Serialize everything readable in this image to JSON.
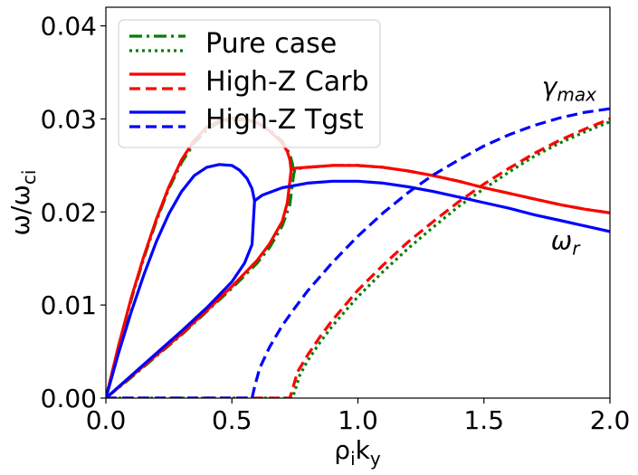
{
  "chart_data": {
    "type": "line",
    "xlabel_main": "ρ",
    "xlabel_sub1": "i",
    "xlabel_mid": "k",
    "xlabel_sub2": "y",
    "ylabel_main": "ω/ω",
    "ylabel_sub": "ci",
    "xlim": [
      0.0,
      2.0
    ],
    "ylim": [
      0.0,
      0.042
    ],
    "x_ticks": [
      0.0,
      0.5,
      1.0,
      1.5,
      2.0
    ],
    "x_tick_labels": [
      "0.0",
      "0.5",
      "1.0",
      "1.5",
      "2.0"
    ],
    "y_ticks": [
      0.0,
      0.01,
      0.02,
      0.03,
      0.04
    ],
    "y_tick_labels": [
      "0.00",
      "0.01",
      "0.02",
      "0.03",
      "0.04"
    ],
    "annotations": {
      "gamma": {
        "main": "γ",
        "sub": "max",
        "x": 1.73,
        "y": 0.0325
      },
      "omega": {
        "main": "ω",
        "sub": "r",
        "x": 1.73,
        "y": 0.016
      }
    },
    "legend": [
      {
        "label": "Pure case",
        "color": "#008000",
        "style1": "dashdot",
        "style2": "dotted"
      },
      {
        "label": "High-Z Carb",
        "color": "#ff0000",
        "style1": "solid",
        "style2": "dashed"
      },
      {
        "label": "High-Z Tgst",
        "color": "#0000ff",
        "style1": "solid",
        "style2": "dashed"
      }
    ],
    "series": [
      {
        "name": "Pure case omega_r",
        "color": "#008000",
        "dash": "dashdot",
        "x": [
          0.0,
          0.05,
          0.1,
          0.15,
          0.2,
          0.25,
          0.3,
          0.35,
          0.4,
          0.45,
          0.5,
          0.55,
          0.6,
          0.65,
          0.7,
          0.73,
          0.74,
          0.745
        ],
        "y": [
          0.0,
          0.0055,
          0.0105,
          0.015,
          0.019,
          0.0225,
          0.0253,
          0.0274,
          0.0288,
          0.0296,
          0.0299,
          0.0299,
          0.0296,
          0.0288,
          0.0276,
          0.0262,
          0.0252,
          0.024
        ]
      },
      {
        "name": "Pure case omega_r lower",
        "color": "#008000",
        "dash": "dashdot",
        "x": [
          0.0,
          0.1,
          0.2,
          0.3,
          0.4,
          0.5,
          0.6,
          0.65,
          0.7,
          0.73,
          0.745,
          0.75,
          0.8,
          0.9,
          1.0,
          1.1,
          1.2,
          1.3,
          1.4,
          1.5,
          1.6,
          1.7,
          1.8,
          1.9,
          2.0
        ],
        "y": [
          0.0,
          0.0022,
          0.0045,
          0.0068,
          0.0093,
          0.0118,
          0.0145,
          0.0162,
          0.0185,
          0.0208,
          0.024,
          0.0246,
          0.0248,
          0.025,
          0.025,
          0.0248,
          0.0244,
          0.0239,
          0.0233,
          0.0226,
          0.022,
          0.0214,
          0.0208,
          0.0203,
          0.0199
        ]
      },
      {
        "name": "Pure case gamma_max",
        "color": "#008000",
        "dash": "dotted",
        "x": [
          0.0,
          0.74,
          0.75,
          0.77,
          0.8,
          0.85,
          0.9,
          1.0,
          1.1,
          1.2,
          1.3,
          1.4,
          1.5,
          1.6,
          1.7,
          1.8,
          1.9,
          2.0
        ],
        "y": [
          0.0,
          0.0,
          0.0008,
          0.0025,
          0.004,
          0.006,
          0.0078,
          0.0109,
          0.0136,
          0.0161,
          0.0184,
          0.0206,
          0.0225,
          0.0243,
          0.026,
          0.0274,
          0.0286,
          0.0297
        ]
      },
      {
        "name": "High-Z Carb omega_r",
        "color": "#ff0000",
        "dash": "solid",
        "x": [
          0.0,
          0.05,
          0.1,
          0.15,
          0.2,
          0.25,
          0.3,
          0.35,
          0.4,
          0.45,
          0.5,
          0.55,
          0.6,
          0.65,
          0.7,
          0.72,
          0.73,
          0.735
        ],
        "y": [
          0.0,
          0.0056,
          0.0107,
          0.0152,
          0.0192,
          0.0227,
          0.0256,
          0.0277,
          0.0291,
          0.0298,
          0.0301,
          0.03,
          0.0296,
          0.0287,
          0.0274,
          0.0265,
          0.0256,
          0.0245
        ]
      },
      {
        "name": "High-Z Carb omega_r lower",
        "color": "#ff0000",
        "dash": "solid",
        "x": [
          0.0,
          0.1,
          0.2,
          0.3,
          0.4,
          0.5,
          0.6,
          0.65,
          0.7,
          0.72,
          0.735,
          0.75,
          0.8,
          0.9,
          1.0,
          1.1,
          1.2,
          1.3,
          1.4,
          1.5,
          1.6,
          1.7,
          1.8,
          1.9,
          2.0
        ],
        "y": [
          0.0,
          0.0023,
          0.0046,
          0.0069,
          0.0094,
          0.012,
          0.0148,
          0.0166,
          0.019,
          0.021,
          0.0245,
          0.0247,
          0.0248,
          0.025,
          0.025,
          0.0248,
          0.0244,
          0.0239,
          0.0233,
          0.0226,
          0.022,
          0.0214,
          0.0208,
          0.0203,
          0.0199
        ]
      },
      {
        "name": "High-Z Carb gamma_max",
        "color": "#ff0000",
        "dash": "dashed",
        "x": [
          0.0,
          0.73,
          0.74,
          0.76,
          0.8,
          0.85,
          0.9,
          1.0,
          1.1,
          1.2,
          1.3,
          1.4,
          1.5,
          1.6,
          1.7,
          1.8,
          1.9,
          2.0
        ],
        "y": [
          0.0,
          0.0,
          0.0009,
          0.0028,
          0.0046,
          0.0066,
          0.0084,
          0.0116,
          0.0143,
          0.0168,
          0.019,
          0.0211,
          0.023,
          0.0247,
          0.0263,
          0.0277,
          0.0289,
          0.03
        ]
      },
      {
        "name": "High-Z Tgst omega_r",
        "color": "#0000ff",
        "dash": "solid",
        "x": [
          0.0,
          0.05,
          0.1,
          0.15,
          0.2,
          0.25,
          0.3,
          0.35,
          0.4,
          0.45,
          0.5,
          0.53,
          0.56,
          0.58,
          0.59
        ],
        "y": [
          0.0,
          0.0048,
          0.0092,
          0.0132,
          0.0168,
          0.0198,
          0.0222,
          0.0239,
          0.0248,
          0.0251,
          0.025,
          0.0245,
          0.0236,
          0.0225,
          0.0212
        ]
      },
      {
        "name": "High-Z Tgst omega_r lower",
        "color": "#0000ff",
        "dash": "solid",
        "x": [
          0.0,
          0.1,
          0.2,
          0.3,
          0.4,
          0.5,
          0.55,
          0.58,
          0.59,
          0.62,
          0.7,
          0.8,
          0.9,
          1.0,
          1.1,
          1.2,
          1.3,
          1.4,
          1.5,
          1.6,
          1.7,
          1.8,
          1.9,
          2.0
        ],
        "y": [
          0.0,
          0.0024,
          0.0048,
          0.0072,
          0.0097,
          0.0125,
          0.0145,
          0.0165,
          0.0212,
          0.0218,
          0.0226,
          0.0231,
          0.0233,
          0.0233,
          0.0231,
          0.0227,
          0.0222,
          0.0216,
          0.021,
          0.0204,
          0.0197,
          0.0191,
          0.0185,
          0.0179
        ]
      },
      {
        "name": "High-Z Tgst gamma_max",
        "color": "#0000ff",
        "dash": "dashed",
        "x": [
          0.0,
          0.58,
          0.59,
          0.61,
          0.65,
          0.7,
          0.75,
          0.8,
          0.9,
          1.0,
          1.1,
          1.2,
          1.3,
          1.4,
          1.5,
          1.6,
          1.7,
          1.8,
          1.9,
          2.0
        ],
        "y": [
          0.0,
          0.0,
          0.0012,
          0.0032,
          0.0055,
          0.0078,
          0.0097,
          0.0115,
          0.0146,
          0.0174,
          0.0199,
          0.0221,
          0.024,
          0.0256,
          0.0271,
          0.0283,
          0.0293,
          0.0301,
          0.0307,
          0.0311
        ]
      }
    ]
  }
}
